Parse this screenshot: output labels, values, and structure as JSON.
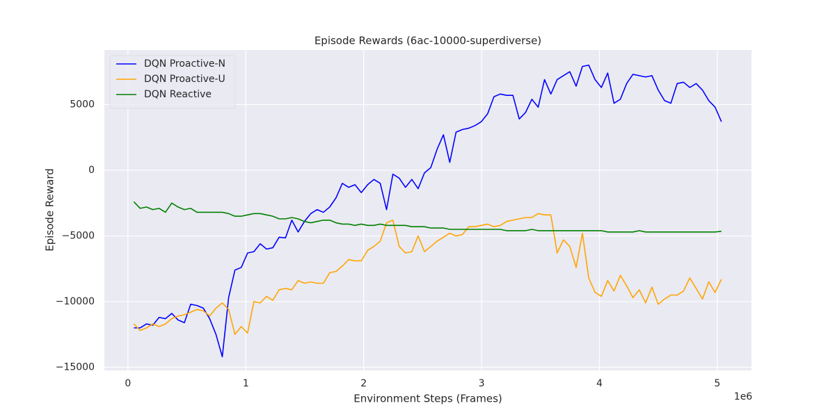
{
  "chart_data": {
    "type": "line",
    "title": "Episode Rewards (6ac-10000-superdiverse)",
    "xlabel": "Environment Steps (Frames)",
    "ylabel": "Episode Reward",
    "x_offset_label": "1e6",
    "xlim": [
      -200000,
      5290000
    ],
    "ylim": [
      -15240,
      9150
    ],
    "xticks": [
      0,
      {
        "value": 1000000,
        "label": "1"
      },
      {
        "value": 2000000,
        "label": "2"
      },
      {
        "value": 3000000,
        "label": "3"
      },
      {
        "value": 4000000,
        "label": "4"
      },
      {
        "value": 5000000,
        "label": "5"
      }
    ],
    "yticks": [
      {
        "value": -15000,
        "label": "−15000"
      },
      {
        "value": -10000,
        "label": "−10000"
      },
      {
        "value": -5000,
        "label": "−5000"
      },
      0,
      5000
    ],
    "grid": true,
    "legend": "upper left",
    "x": [
      50000,
      103600,
      157200,
      210800,
      264400,
      318000,
      371600,
      425200,
      478800,
      532400,
      586000,
      639600,
      693200,
      746800,
      800400,
      854000,
      907600,
      961200,
      1014800,
      1068400,
      1122000,
      1175600,
      1229200,
      1282800,
      1336400,
      1390000,
      1443600,
      1497200,
      1550800,
      1604400,
      1658000,
      1711600,
      1765200,
      1818800,
      1872400,
      1926000,
      1979600,
      2033200,
      2086800,
      2140400,
      2194000,
      2247600,
      2301200,
      2354800,
      2408400,
      2462000,
      2515600,
      2569200,
      2622800,
      2676400,
      2730000,
      2783600,
      2837200,
      2890800,
      2944400,
      2998000,
      3051600,
      3105200,
      3158800,
      3212400,
      3266000,
      3319600,
      3373200,
      3426800,
      3480400,
      3534000,
      3587600,
      3641200,
      3694800,
      3748400,
      3802000,
      3855600,
      3909200,
      3962800,
      4016400,
      4070000,
      4123600,
      4177200,
      4230800,
      4284400,
      4338000,
      4391600,
      4445200,
      4498800,
      4552400,
      4606000,
      4659600,
      4713200,
      4766800,
      4820400,
      4874000,
      4927600,
      4981200,
      5034800
    ],
    "series": [
      {
        "name": "DQN Proactive-N",
        "color": "#0000ff",
        "values": [
          -12000,
          -12000,
          -11700,
          -11800,
          -11200,
          -11300,
          -10900,
          -11400,
          -11600,
          -10200,
          -10300,
          -10500,
          -11300,
          -12500,
          -14200,
          -9700,
          -7600,
          -7400,
          -6300,
          -6200,
          -5600,
          -6000,
          -5900,
          -5100,
          -5150,
          -3800,
          -4700,
          -3900,
          -3300,
          -3000,
          -3200,
          -2800,
          -2100,
          -1000,
          -1300,
          -1100,
          -1700,
          -1100,
          -700,
          -1000,
          -3000,
          -300,
          -600,
          -1300,
          -700,
          -1400,
          -200,
          200,
          1600,
          2700,
          600,
          2900,
          3100,
          3200,
          3400,
          3700,
          4300,
          5600,
          5800,
          5700,
          5700,
          3900,
          4400,
          5400,
          4800,
          6900,
          5800,
          6900,
          7200,
          7500,
          6400,
          7900,
          8000,
          6900,
          6300,
          7400,
          5100,
          5400,
          6600,
          7300,
          7200,
          7100,
          7200,
          6100,
          5300,
          5100,
          6600,
          6700,
          6300,
          6600,
          6100,
          5300,
          4800,
          3700
        ]
      },
      {
        "name": "DQN Proactive-U",
        "color": "#ffa500",
        "values": [
          -11700,
          -12200,
          -12000,
          -11700,
          -11900,
          -11700,
          -11300,
          -11100,
          -11000,
          -10800,
          -10600,
          -10700,
          -11100,
          -10500,
          -10100,
          -10600,
          -12500,
          -11900,
          -12400,
          -10000,
          -10100,
          -9600,
          -9900,
          -9100,
          -9000,
          -9100,
          -8400,
          -8600,
          -8500,
          -8600,
          -8600,
          -7800,
          -7700,
          -7300,
          -6800,
          -6900,
          -6900,
          -6100,
          -5800,
          -5400,
          -4000,
          -3800,
          -5800,
          -6300,
          -6200,
          -5000,
          -6200,
          -5800,
          -5400,
          -5100,
          -4800,
          -5000,
          -4900,
          -4300,
          -4300,
          -4200,
          -4100,
          -4300,
          -4200,
          -3900,
          -3800,
          -3700,
          -3600,
          -3600,
          -3300,
          -3400,
          -3400,
          -6300,
          -5300,
          -5800,
          -7400,
          -4800,
          -8200,
          -9300,
          -9600,
          -8400,
          -9200,
          -8000,
          -8800,
          -9700,
          -9100,
          -10100,
          -8900,
          -10200,
          -9800,
          -9500,
          -9500,
          -9200,
          -8200,
          -9000,
          -9800,
          -8500,
          -9300,
          -8300
        ]
      },
      {
        "name": "DQN Reactive",
        "color": "#008000",
        "values": [
          -2400,
          -2900,
          -2800,
          -3000,
          -2900,
          -3200,
          -2500,
          -2800,
          -3000,
          -2900,
          -3200,
          -3200,
          -3200,
          -3200,
          -3200,
          -3300,
          -3500,
          -3500,
          -3400,
          -3300,
          -3300,
          -3400,
          -3500,
          -3700,
          -3700,
          -3600,
          -3700,
          -3900,
          -4000,
          -3900,
          -3800,
          -3800,
          -4000,
          -4100,
          -4100,
          -4200,
          -4100,
          -4200,
          -4200,
          -4100,
          -4200,
          -4200,
          -4200,
          -4200,
          -4300,
          -4300,
          -4300,
          -4400,
          -4400,
          -4400,
          -4500,
          -4500,
          -4500,
          -4500,
          -4500,
          -4500,
          -4500,
          -4500,
          -4500,
          -4600,
          -4600,
          -4600,
          -4600,
          -4500,
          -4600,
          -4600,
          -4600,
          -4600,
          -4600,
          -4600,
          -4600,
          -4600,
          -4600,
          -4600,
          -4600,
          -4700,
          -4700,
          -4700,
          -4700,
          -4700,
          -4600,
          -4700,
          -4700,
          -4700,
          -4700,
          -4700,
          -4700,
          -4700,
          -4700,
          -4700,
          -4700,
          -4700,
          -4700,
          -4650
        ]
      }
    ]
  }
}
